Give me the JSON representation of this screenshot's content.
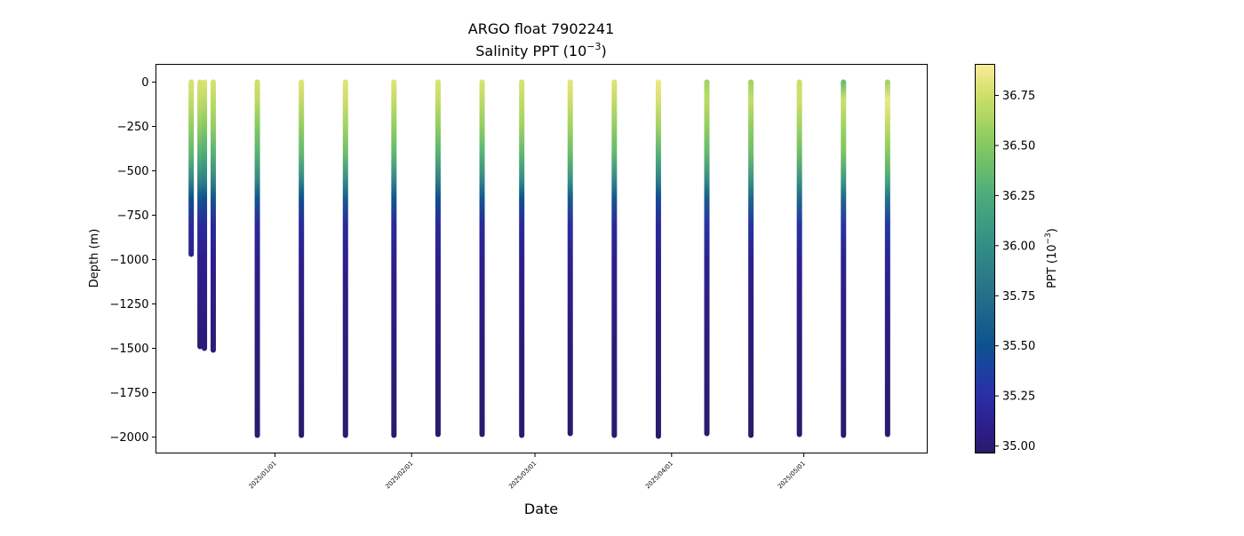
{
  "chart_data": {
    "type": "scatter",
    "title": "ARGO float 7902241",
    "subtitle_prefix": "Salinity PPT (10",
    "subtitle_exp": "−3",
    "subtitle_suffix": ")",
    "xlabel": "Date",
    "ylabel": "Depth (m)",
    "xlim": [
      "2024-12-05",
      "2025-05-29"
    ],
    "ylim": [
      -2090,
      100
    ],
    "yticks": [
      0,
      -250,
      -500,
      -750,
      -1000,
      -1250,
      -1500,
      -1750,
      -2000
    ],
    "ytick_labels": [
      "0",
      "−250",
      "−500",
      "−750",
      "−1000",
      "−1250",
      "−1500",
      "−1750",
      "−2000"
    ],
    "xticks": [
      "2025-01-01",
      "2025-02-01",
      "2025-03-01",
      "2025-04-01",
      "2025-05-01"
    ],
    "xtick_labels": [
      "2025/01/01",
      "2025/02/01",
      "2025/03/01",
      "2025/04/01",
      "2025/05/01"
    ],
    "grid": false,
    "colorbar": {
      "label_prefix": "PPT (10",
      "label_exp": "−3",
      "label_suffix": ")",
      "range": [
        34.965,
        36.905
      ],
      "ticks": [
        35.0,
        35.25,
        35.5,
        35.75,
        36.0,
        36.25,
        36.5,
        36.75
      ],
      "tick_labels": [
        "35.00",
        "35.25",
        "35.50",
        "35.75",
        "36.00",
        "36.25",
        "36.50",
        "36.75"
      ],
      "colormap": [
        [
          34.965,
          "#2a1a6a"
        ],
        [
          35.1,
          "#2c1f8c"
        ],
        [
          35.25,
          "#2a2fa3"
        ],
        [
          35.4,
          "#1a43a0"
        ],
        [
          35.5,
          "#0e528e"
        ],
        [
          35.75,
          "#256f8a"
        ],
        [
          36.0,
          "#338d86"
        ],
        [
          36.25,
          "#4cac7b"
        ],
        [
          36.5,
          "#84c960"
        ],
        [
          36.75,
          "#cddf68"
        ],
        [
          36.905,
          "#fcec98"
        ]
      ]
    },
    "depth_levels": [
      0,
      -100,
      -250,
      -400,
      -550,
      -650,
      -800,
      -1000,
      -1500,
      -2000
    ],
    "profiles": [
      {
        "date": "2024-12-13",
        "max_depth": -970,
        "salinity": [
          36.78,
          36.72,
          36.55,
          36.35,
          35.95,
          35.5,
          35.2,
          35.12
        ]
      },
      {
        "date": "2024-12-15",
        "max_depth": -1490,
        "salinity": [
          36.78,
          36.72,
          36.55,
          36.3,
          35.95,
          35.55,
          35.2,
          35.1,
          35.02
        ]
      },
      {
        "date": "2024-12-16",
        "max_depth": -1500,
        "salinity": [
          36.8,
          36.7,
          36.5,
          36.25,
          35.9,
          35.5,
          35.2,
          35.1,
          35.02
        ]
      },
      {
        "date": "2024-12-18",
        "max_depth": -1510,
        "salinity": [
          36.78,
          36.7,
          36.55,
          36.3,
          35.95,
          35.55,
          35.2,
          35.1,
          35.02
        ]
      },
      {
        "date": "2024-12-28",
        "max_depth": -1990,
        "salinity": [
          36.75,
          36.7,
          36.5,
          36.3,
          35.95,
          35.55,
          35.2,
          35.1,
          35.03,
          34.98
        ]
      },
      {
        "date": "2025-01-07",
        "max_depth": -1990,
        "salinity": [
          36.8,
          36.72,
          36.55,
          36.35,
          35.95,
          35.5,
          35.2,
          35.1,
          35.03,
          34.98
        ]
      },
      {
        "date": "2025-01-17",
        "max_depth": -1990,
        "salinity": [
          36.8,
          36.75,
          36.6,
          36.4,
          36.0,
          35.6,
          35.2,
          35.1,
          35.03,
          34.98
        ]
      },
      {
        "date": "2025-01-28",
        "max_depth": -1990,
        "salinity": [
          36.8,
          36.72,
          36.55,
          36.35,
          35.95,
          35.55,
          35.2,
          35.1,
          35.03,
          34.98
        ]
      },
      {
        "date": "2025-02-07",
        "max_depth": -1985,
        "salinity": [
          36.78,
          36.72,
          36.55,
          36.3,
          35.9,
          35.5,
          35.2,
          35.1,
          35.03,
          34.98
        ]
      },
      {
        "date": "2025-02-17",
        "max_depth": -1985,
        "salinity": [
          36.78,
          36.7,
          36.55,
          36.3,
          35.95,
          35.55,
          35.2,
          35.1,
          35.03,
          34.98
        ]
      },
      {
        "date": "2025-02-26",
        "max_depth": -1990,
        "salinity": [
          36.78,
          36.72,
          36.6,
          36.35,
          36.0,
          35.5,
          35.2,
          35.1,
          35.03,
          34.98
        ]
      },
      {
        "date": "2025-03-09",
        "max_depth": -1980,
        "salinity": [
          36.82,
          36.75,
          36.6,
          36.4,
          36.05,
          35.6,
          35.25,
          35.12,
          35.03,
          34.98
        ]
      },
      {
        "date": "2025-03-19",
        "max_depth": -1990,
        "salinity": [
          36.8,
          36.72,
          36.55,
          36.35,
          35.95,
          35.55,
          35.2,
          35.1,
          35.03,
          34.98
        ]
      },
      {
        "date": "2025-03-29",
        "max_depth": -1995,
        "salinity": [
          36.85,
          36.78,
          36.6,
          36.3,
          35.9,
          35.45,
          35.2,
          35.1,
          35.03,
          34.98
        ]
      },
      {
        "date": "2025-04-09",
        "max_depth": -1980,
        "salinity": [
          36.6,
          36.7,
          36.55,
          36.35,
          36.0,
          35.6,
          35.3,
          35.12,
          35.03,
          34.98
        ]
      },
      {
        "date": "2025-04-19",
        "max_depth": -1990,
        "salinity": [
          36.6,
          36.72,
          36.55,
          36.4,
          36.05,
          35.7,
          35.3,
          35.12,
          35.03,
          34.98
        ]
      },
      {
        "date": "2025-04-30",
        "max_depth": -1985,
        "salinity": [
          36.75,
          36.75,
          36.6,
          36.4,
          36.05,
          35.7,
          35.3,
          35.12,
          35.03,
          34.98
        ]
      },
      {
        "date": "2025-05-10",
        "max_depth": -1990,
        "salinity": [
          36.4,
          36.75,
          36.6,
          36.45,
          36.1,
          35.7,
          35.3,
          35.12,
          35.03,
          34.98
        ]
      },
      {
        "date": "2025-05-20",
        "max_depth": -1985,
        "salinity": [
          36.6,
          36.85,
          36.7,
          36.5,
          36.2,
          35.8,
          35.35,
          35.15,
          35.03,
          34.98
        ]
      }
    ]
  }
}
